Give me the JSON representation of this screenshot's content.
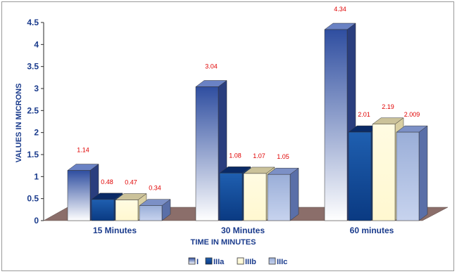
{
  "chart_data": {
    "type": "bar",
    "categories": [
      "15 Minutes",
      "30 Minutes",
      "60 minutes"
    ],
    "series": [
      {
        "name": "I",
        "values": [
          1.14,
          3.04,
          4.34
        ]
      },
      {
        "name": "IIIa",
        "values": [
          0.48,
          1.08,
          2.01
        ]
      },
      {
        "name": "IIIb",
        "values": [
          0.47,
          1.07,
          2.19
        ]
      },
      {
        "name": "IIIc",
        "values": [
          0.34,
          1.05,
          2.009
        ]
      }
    ],
    "data_labels": [
      [
        "1.14",
        "3.04",
        "4.34"
      ],
      [
        "0.48",
        "1.08",
        "2.01"
      ],
      [
        "0.47",
        "1.07",
        "2.19"
      ],
      [
        "0.34",
        "1.05",
        "2.009"
      ]
    ],
    "yticks": [
      "0",
      "0.5",
      "1",
      "1.5",
      "2",
      "2.5",
      "3",
      "3.5",
      "4",
      "4.5"
    ],
    "ylim": [
      0,
      4.5
    ],
    "xlabel": "TIME IN MINUTES",
    "ylabel": "VALUES IN MICRONS",
    "legend_position": "bottom",
    "three_d": true,
    "colors": {
      "series_front_top": [
        "#2f4ea0",
        "#1f5fb0",
        "#fffbe2",
        "#9aaed8"
      ],
      "series_front_bottom": [
        "#ffffff",
        "#0a3a82",
        "#fff8d0",
        "#c7d3ee"
      ],
      "series_side": [
        "#2a3e7e",
        "#123a7a",
        "#d9cfa2",
        "#5a6fa8"
      ],
      "series_top": [
        "#6a82c4",
        "#0a2a66",
        "#cbc29a",
        "#7c90c6"
      ],
      "floor": "#8b6e6a",
      "axis_text": "#1a3b8c",
      "data_label": "#e00000"
    }
  }
}
